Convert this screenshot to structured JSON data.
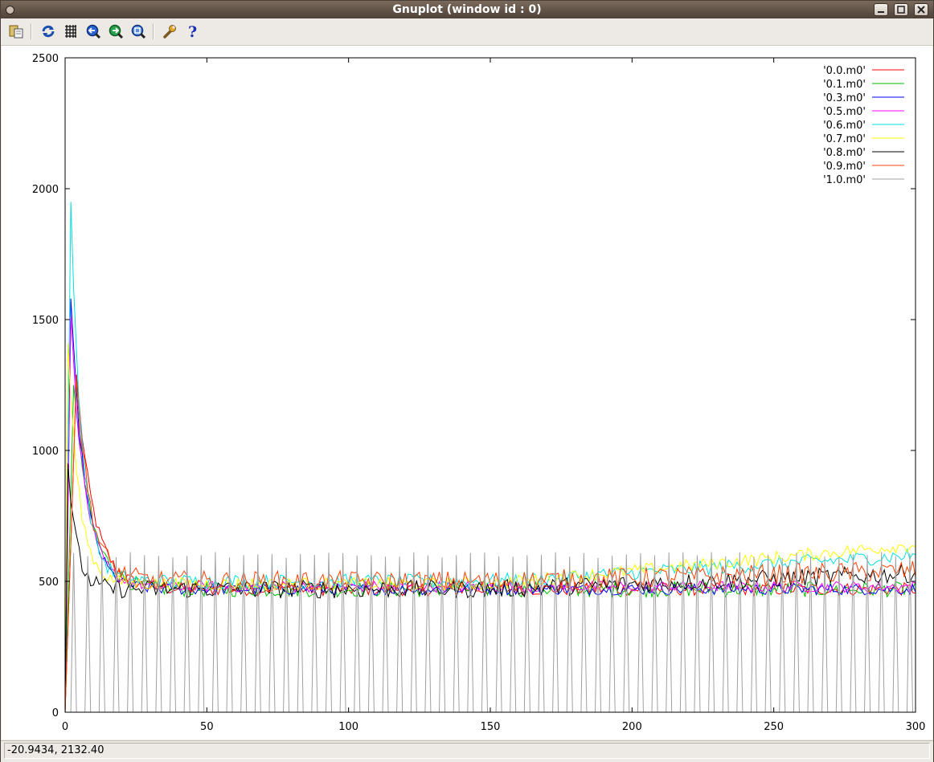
{
  "window": {
    "title": "Gnuplot (window id : 0)",
    "controls": [
      "minimize",
      "maximize",
      "close"
    ]
  },
  "toolbar": {
    "buttons": [
      {
        "icon": "copy-to-clipboard-icon"
      },
      {
        "icon": "replot-icon"
      },
      {
        "icon": "grid-icon"
      },
      {
        "icon": "zoom-previous-icon"
      },
      {
        "icon": "zoom-next-icon"
      },
      {
        "icon": "autoscale-icon"
      },
      {
        "icon": "settings-icon"
      },
      {
        "icon": "help-icon"
      }
    ]
  },
  "status": {
    "coordinates": "-20.9434,  2132.40"
  },
  "chart_data": {
    "type": "line",
    "xlim": [
      0,
      300
    ],
    "ylim": [
      0,
      2500
    ],
    "xticks": [
      "0",
      "50",
      "100",
      "150",
      "200",
      "250",
      "300"
    ],
    "yticks": [
      "0",
      "500",
      "1000",
      "1500",
      "2000",
      "2500"
    ],
    "grid": false,
    "legend_position": "top-right",
    "series": [
      {
        "name": "'0.0.m0'",
        "color": "#ff0000",
        "peak": {
          "x": 4,
          "y": 1290
        },
        "level": 470,
        "noise": 25,
        "decay": 6
      },
      {
        "name": "'0.1.m0'",
        "color": "#00c000",
        "peak": {
          "x": 3,
          "y": 1250
        },
        "level": 470,
        "noise": 30,
        "decay": 6
      },
      {
        "name": "'0.3.m0'",
        "color": "#0000ff",
        "peak": {
          "x": 2,
          "y": 1580
        },
        "level": 470,
        "noise": 22,
        "decay": 5
      },
      {
        "name": "'0.5.m0'",
        "color": "#ff00ff",
        "peak": {
          "x": 2,
          "y": 1510
        },
        "level": 480,
        "noise": 22,
        "decay": 5
      },
      {
        "name": "'0.6.m0'",
        "color": "#00e0e0",
        "peak": {
          "x": 2,
          "y": 1950
        },
        "level": 500,
        "end_level": 600,
        "noise": 28,
        "decay": 4
      },
      {
        "name": "'0.7.m0'",
        "color": "#ffff00",
        "peak": {
          "x": 1,
          "y": 1410
        },
        "level": 490,
        "end_level": 640,
        "noise": 25,
        "decay": 4
      },
      {
        "name": "'0.8.m0'",
        "color": "#000000",
        "peak": {
          "x": 1,
          "y": 950
        },
        "level": 470,
        "end_level": 530,
        "noise": 35,
        "decay": 3
      },
      {
        "name": "'0.9.m0'",
        "color": "#ff4000",
        "peak": {
          "x": 4,
          "y": 1280
        },
        "level": 500,
        "end_level": 540,
        "noise": 40,
        "decay": 5
      },
      {
        "name": "'1.0.m0'",
        "color": "#a0a0a0",
        "pattern": "periodic spikes",
        "period": 5,
        "spike_height": 600,
        "base": 0
      }
    ]
  }
}
